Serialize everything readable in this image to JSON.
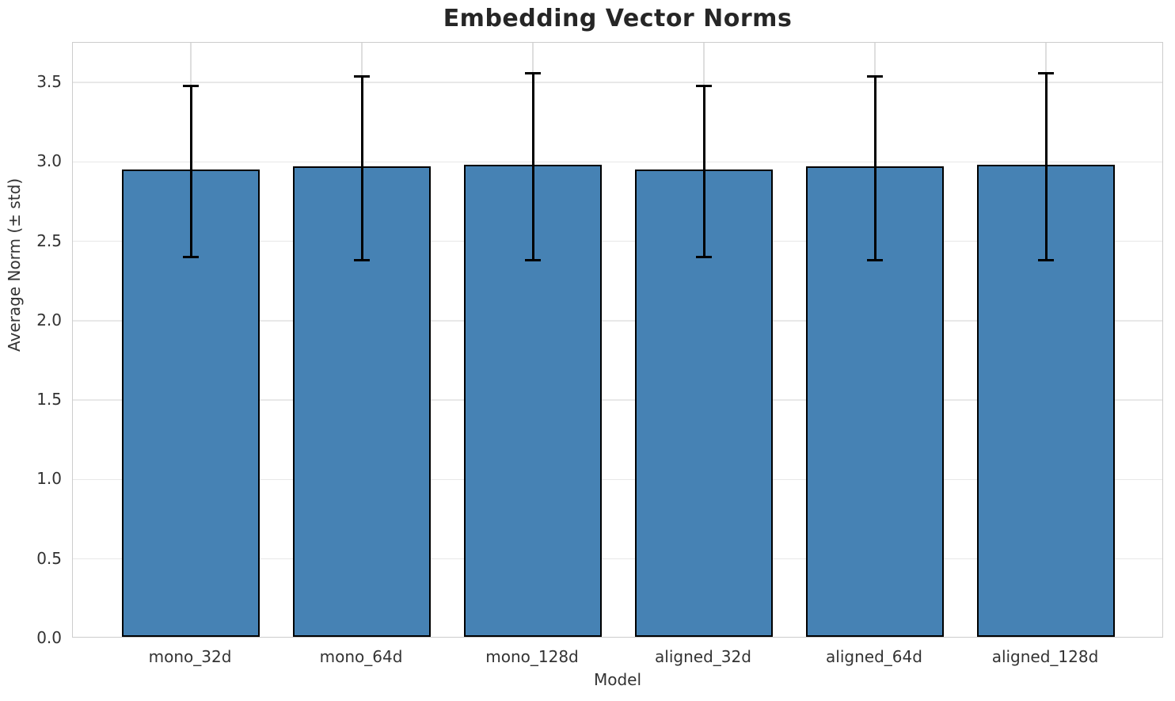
{
  "chart_data": {
    "type": "bar",
    "title": "Embedding Vector Norms",
    "xlabel": "Model",
    "ylabel": "Average Norm (± std)",
    "categories": [
      "mono_32d",
      "mono_64d",
      "mono_128d",
      "aligned_32d",
      "aligned_64d",
      "aligned_128d"
    ],
    "series": [
      {
        "name": "Average Norm",
        "values": [
          2.94,
          2.96,
          2.97,
          2.94,
          2.96,
          2.97
        ],
        "errors": [
          0.54,
          0.58,
          0.59,
          0.54,
          0.58,
          0.59
        ]
      }
    ],
    "ylim": [
      0,
      3.75
    ],
    "yticks": [
      0.0,
      0.5,
      1.0,
      1.5,
      2.0,
      2.5,
      3.0,
      3.5
    ],
    "ytick_labels": [
      "0.0",
      "0.5",
      "1.0",
      "1.5",
      "2.0",
      "2.5",
      "3.0",
      "3.5"
    ],
    "grid": true,
    "legend": "none",
    "colors": {
      "bar_fill": "#4682B4",
      "bar_edge": "#000000",
      "error_bar": "#000000",
      "grid_h": "#e8e8e8",
      "grid_v": "#dedede",
      "spine": "#cccccc",
      "text": "#333333",
      "title": "#262626"
    }
  }
}
